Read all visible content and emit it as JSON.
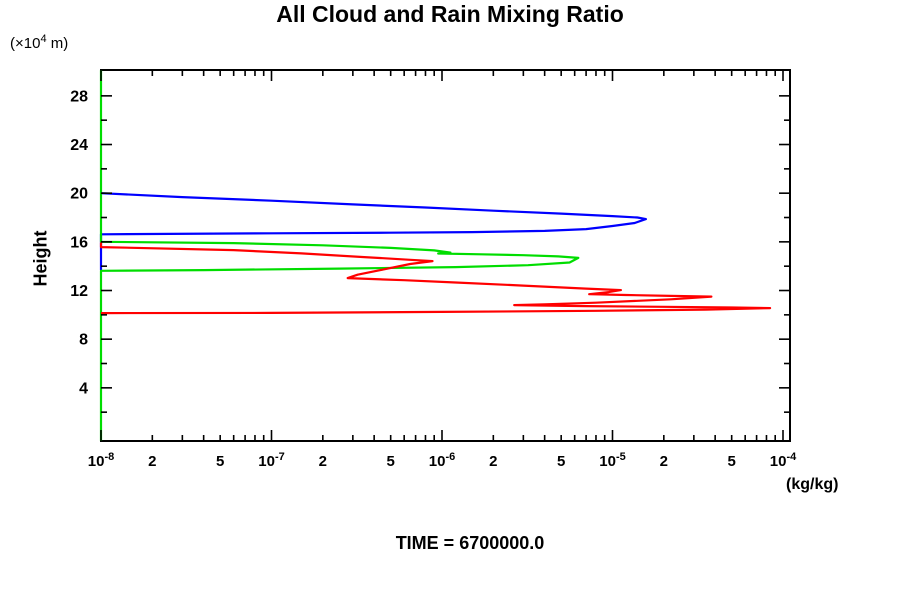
{
  "title": "All Cloud and Rain Mixing Ratio",
  "footer": "TIME = 6700000.0",
  "axes": {
    "y_title": "Height",
    "y_unit": {
      "prefix": "(×10",
      "exp": "4",
      "suffix": " m)"
    },
    "x_unit": "(kg/kg)"
  },
  "chart_data": {
    "type": "line",
    "title": "All Cloud and Rain Mixing Ratio",
    "xlabel": "(kg/kg)",
    "ylabel": "Height (x10^4 m)",
    "x_scale": "log",
    "xlim": [
      1e-08,
      0.0001085
    ],
    "ylim": [
      -0.37,
      30.1
    ],
    "grid": false,
    "frame": true,
    "legend": "none",
    "x_decade_exponents": [
      -8,
      -7,
      -6,
      -5,
      -4
    ],
    "x_minor_labeled_mantissas": [
      2,
      5
    ],
    "y_ticks_step": 2,
    "y_ticks_min": 2,
    "y_ticks_max": 28,
    "y_labeled_ticks": [
      4,
      8,
      12,
      16,
      20,
      24,
      28
    ],
    "series": [
      {
        "name": "blue-profile",
        "color": "#0000ff",
        "points": [
          [
            1e-08,
            13.68
          ],
          [
            1e-08,
            16.62
          ],
          [
            1e-07,
            16.7
          ],
          [
            5e-07,
            16.75
          ],
          [
            1.5e-06,
            16.8
          ],
          [
            4e-06,
            16.9
          ],
          [
            7e-06,
            17.05
          ],
          [
            1e-05,
            17.3
          ],
          [
            1.35e-05,
            17.55
          ],
          [
            1.57e-05,
            17.87
          ],
          [
            1.4e-05,
            18.0
          ],
          [
            1e-05,
            18.12
          ],
          [
            5e-06,
            18.32
          ],
          [
            2e-06,
            18.56
          ],
          [
            8e-07,
            18.82
          ],
          [
            3e-07,
            19.08
          ],
          [
            1e-07,
            19.38
          ],
          [
            3e-08,
            19.68
          ],
          [
            1e-08,
            20.0
          ]
        ]
      },
      {
        "name": "green-profile",
        "color": "#00dd00",
        "points": [
          [
            1e-08,
            30.1
          ],
          [
            1e-08,
            16.0
          ],
          [
            6e-08,
            15.9
          ],
          [
            2e-07,
            15.72
          ],
          [
            5e-07,
            15.5
          ],
          [
            9e-07,
            15.3
          ],
          [
            1.12e-06,
            15.12
          ],
          [
            9.5e-07,
            15.04
          ],
          [
            1.7e-06,
            14.98
          ],
          [
            3e-06,
            14.9
          ],
          [
            4.8e-06,
            14.8
          ],
          [
            6.3e-06,
            14.68
          ],
          [
            5.6e-06,
            14.3
          ],
          [
            3.2e-06,
            14.08
          ],
          [
            1.2e-06,
            13.92
          ],
          [
            2.5e-07,
            13.8
          ],
          [
            4e-08,
            13.68
          ],
          [
            1e-08,
            13.62
          ],
          [
            1e-08,
            -0.36
          ]
        ]
      },
      {
        "name": "red-profile",
        "color": "#ff0000",
        "points": [
          [
            1e-08,
            15.95
          ],
          [
            1e-08,
            15.57
          ],
          [
            6e-08,
            15.32
          ],
          [
            1.5e-07,
            15.05
          ],
          [
            3.5e-07,
            14.75
          ],
          [
            6.5e-07,
            14.52
          ],
          [
            8.8e-07,
            14.42
          ],
          [
            6.5e-07,
            14.18
          ],
          [
            4.5e-07,
            13.72
          ],
          [
            3.2e-07,
            13.3
          ],
          [
            2.8e-07,
            13.02
          ],
          [
            6e-07,
            12.85
          ],
          [
            1.2e-06,
            12.66
          ],
          [
            3e-06,
            12.4
          ],
          [
            7e-06,
            12.16
          ],
          [
            1.12e-05,
            12.03
          ],
          [
            9.5e-06,
            11.87
          ],
          [
            7.3e-06,
            11.7
          ],
          [
            1.2e-05,
            11.63
          ],
          [
            2.4e-05,
            11.55
          ],
          [
            3.8e-05,
            11.5
          ],
          [
            2.2e-05,
            11.28
          ],
          [
            8e-06,
            11.0
          ],
          [
            4e-06,
            10.87
          ],
          [
            2.65e-06,
            10.8
          ],
          [
            7e-06,
            10.72
          ],
          [
            2e-05,
            10.66
          ],
          [
            5e-05,
            10.6
          ],
          [
            8.4e-05,
            10.55
          ],
          [
            3.5e-05,
            10.43
          ],
          [
            8e-06,
            10.33
          ],
          [
            1e-06,
            10.24
          ],
          [
            1e-07,
            10.16
          ],
          [
            1e-08,
            10.14
          ]
        ]
      }
    ]
  }
}
